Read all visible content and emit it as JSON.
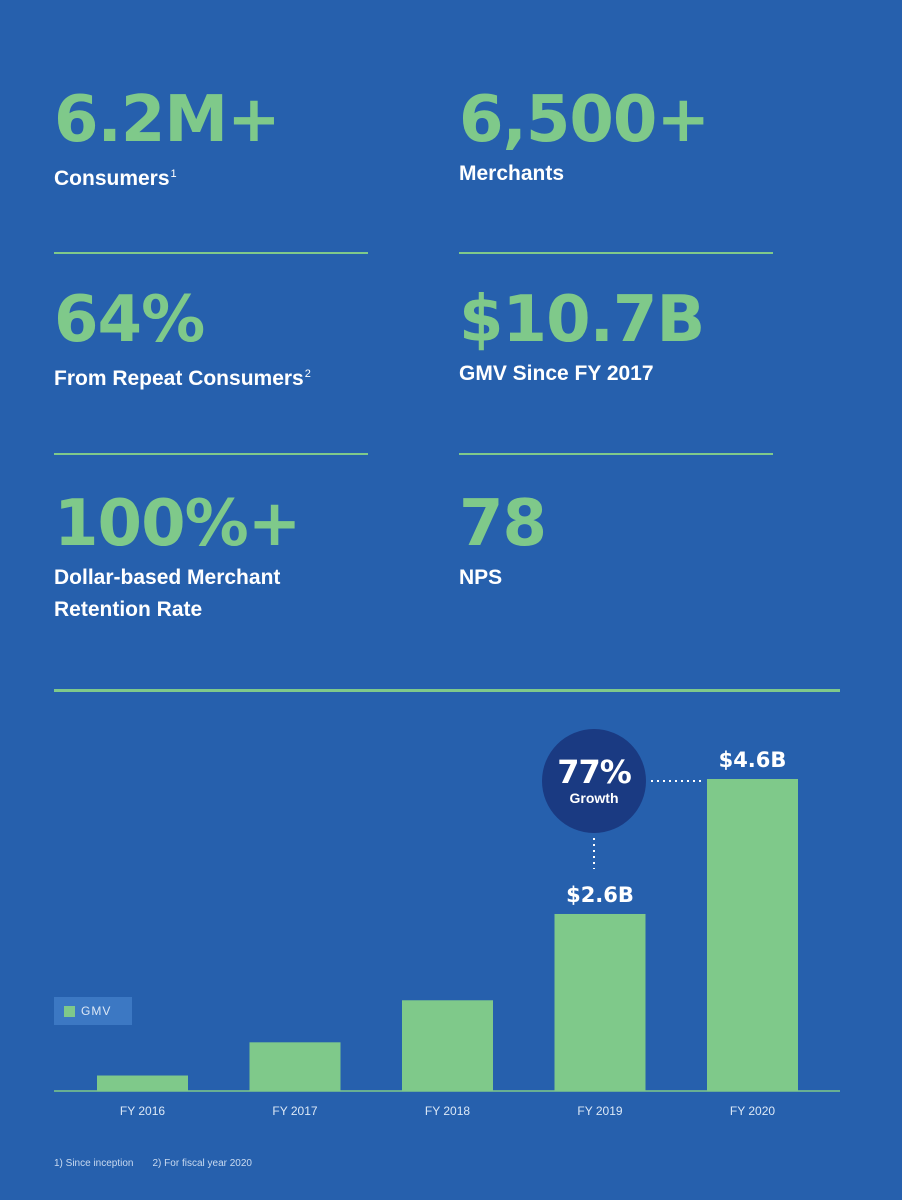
{
  "stats": [
    {
      "value": "6.2M+",
      "label": "Consumers",
      "sup": "1"
    },
    {
      "value": "6,500+",
      "label": "Merchants",
      "sup": ""
    },
    {
      "value": "64%",
      "label": "From Repeat Consumers",
      "sup": "2"
    },
    {
      "value": "$10.7B",
      "label": "GMV Since FY 2017",
      "sup": ""
    },
    {
      "value": "100%+",
      "label": "Dollar-based Merchant Retention Rate",
      "sup": ""
    },
    {
      "value": "78",
      "label": "NPS",
      "sup": ""
    }
  ],
  "growth": {
    "value": "77%",
    "label": "Growth"
  },
  "colors": {
    "background": "#2660ad",
    "accent": "#7fc98a",
    "bubble": "#1a3a82"
  },
  "chart_data": {
    "type": "bar",
    "categories": [
      "FY 2016",
      "FY 2017",
      "FY 2018",
      "FY 2019",
      "FY 2020"
    ],
    "series": [
      {
        "name": "GMV",
        "values": [
          0.7,
          2.2,
          4.1,
          8.0,
          14.1
        ]
      }
    ],
    "bar_labels": [
      "",
      "",
      "",
      "$2.6B",
      "$4.6B"
    ],
    "legend": "GMV",
    "legend_position": "left",
    "ylim": [
      0,
      14.1
    ],
    "grid": false
  },
  "footnotes": [
    "1) Since inception",
    "2) For fiscal year 2020"
  ]
}
